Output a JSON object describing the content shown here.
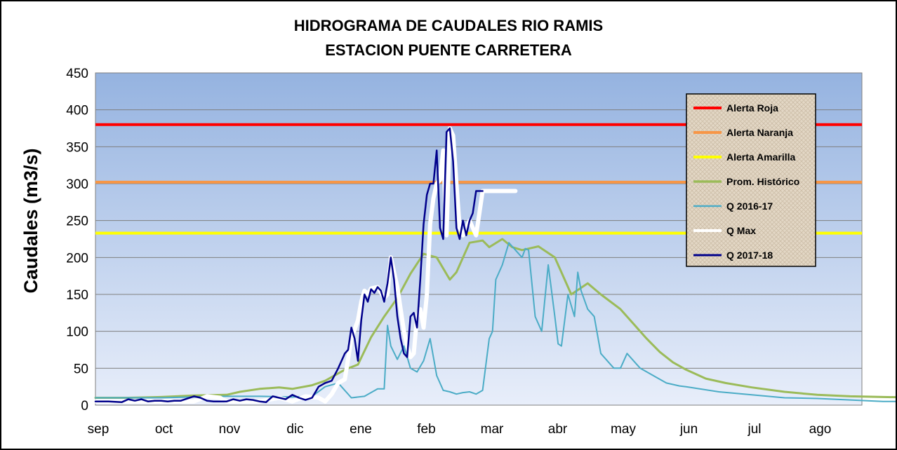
{
  "chart_data": {
    "type": "line",
    "title": [
      "HIDROGRAMA DE CAUDALES RIO RAMIS",
      "ESTACION PUENTE CARRETERA"
    ],
    "ylabel": "Caudales (m3/s)",
    "xlabel": "",
    "ylim": [
      0,
      450
    ],
    "yticks": [
      0,
      50,
      100,
      150,
      200,
      250,
      300,
      350,
      400,
      450
    ],
    "xlim": [
      0,
      12.9
    ],
    "x_unit": "months from start of September",
    "months": [
      "sep",
      "oct",
      "nov",
      "dic",
      "ene",
      "feb",
      "mar",
      "abr",
      "may",
      "jun",
      "jul",
      "ago"
    ],
    "grid": true,
    "legend_position": "right",
    "thresholds": [
      {
        "name": "Alerta Roja",
        "value": 380,
        "color": "#ff0000"
      },
      {
        "name": "Alerta Naranja",
        "value": 302,
        "color": "#f79646"
      },
      {
        "name": "Alerta Amarilla",
        "value": 233,
        "color": "#ffff00"
      }
    ],
    "series": [
      {
        "name": "Prom. Histórico",
        "color": "#9bbb59",
        "width": 3,
        "x": [
          0,
          0.5,
          1,
          1.5,
          2,
          2.2,
          2.5,
          2.8,
          3,
          3.3,
          3.5,
          3.8,
          4,
          4.2,
          4.4,
          4.6,
          4.8,
          5,
          5.2,
          5.4,
          5.5,
          5.7,
          5.9,
          6,
          6.2,
          6.35,
          6.5,
          6.75,
          7,
          7.25,
          7.5,
          7.7,
          8,
          8.2,
          8.4,
          8.6,
          8.8,
          9,
          9.3,
          9.6,
          10,
          10.5,
          11,
          11.5,
          12,
          12.9
        ],
        "y": [
          10,
          10,
          11,
          13,
          14,
          18,
          22,
          24,
          22,
          27,
          33,
          48,
          55,
          92,
          120,
          145,
          178,
          205,
          200,
          170,
          180,
          220,
          223,
          214,
          225,
          214,
          210,
          215,
          200,
          150,
          165,
          150,
          130,
          110,
          90,
          72,
          58,
          48,
          36,
          30,
          24,
          18,
          14,
          12,
          11,
          10
        ]
      },
      {
        "name": "Q 2016-17",
        "color": "#4bacc6",
        "width": 2,
        "x": [
          0,
          0.5,
          1,
          1.5,
          2,
          2.5,
          3,
          3.3,
          3.5,
          3.7,
          3.9,
          4.1,
          4.3,
          4.4,
          4.45,
          4.5,
          4.6,
          4.7,
          4.8,
          4.9,
          5,
          5.1,
          5.2,
          5.3,
          5.4,
          5.5,
          5.6,
          5.7,
          5.8,
          5.9,
          6.0,
          6.05,
          6.1,
          6.2,
          6.3,
          6.5,
          6.55,
          6.6,
          6.7,
          6.8,
          6.9,
          7.0,
          7.05,
          7.1,
          7.2,
          7.3,
          7.35,
          7.4,
          7.5,
          7.6,
          7.7,
          7.8,
          7.9,
          8.0,
          8.1,
          8.2,
          8.3,
          8.5,
          8.7,
          8.9,
          9,
          9.5,
          10,
          10.5,
          11,
          11.5,
          12,
          12.9
        ],
        "y": [
          10,
          10,
          10,
          11,
          12,
          12,
          11,
          12,
          25,
          30,
          10,
          12,
          22,
          22,
          108,
          80,
          62,
          80,
          50,
          45,
          60,
          90,
          40,
          20,
          18,
          15,
          17,
          18,
          15,
          20,
          90,
          100,
          170,
          190,
          220,
          200,
          212,
          210,
          120,
          100,
          190,
          120,
          83,
          80,
          150,
          120,
          180,
          155,
          130,
          120,
          70,
          60,
          50,
          50,
          70,
          60,
          50,
          40,
          30,
          26,
          25,
          18,
          14,
          10,
          9,
          7,
          5,
          5
        ]
      },
      {
        "name": "Q Max",
        "color": "#ffffff",
        "width": 6,
        "x": [
          0,
          0.5,
          1,
          1.5,
          1.7,
          1.9,
          2,
          2.5,
          2.8,
          3,
          3.2,
          3.4,
          3.5,
          3.6,
          3.7,
          3.8,
          3.9,
          4,
          4.05,
          4.1,
          4.15,
          4.2,
          4.3,
          4.4,
          4.45,
          4.5,
          4.6,
          4.7,
          4.75,
          4.8,
          4.85,
          4.9,
          4.95,
          5,
          5.05,
          5.1,
          5.15,
          5.2,
          5.25,
          5.3,
          5.35,
          5.4,
          5.45,
          5.5,
          5.55,
          5.6,
          5.7,
          5.8,
          5.85,
          5.9,
          5.95,
          6.0,
          6.05,
          6.1,
          6.15,
          6.2,
          6.25,
          6.3,
          6.35,
          6.4
        ],
        "y": [
          5,
          5,
          5,
          5,
          12,
          10,
          5,
          5,
          10,
          5,
          12,
          10,
          5,
          15,
          30,
          35,
          90,
          115,
          140,
          155,
          150,
          158,
          160,
          145,
          150,
          200,
          160,
          100,
          80,
          65,
          70,
          120,
          130,
          105,
          150,
          245,
          280,
          300,
          305,
          345,
          230,
          375,
          365,
          300,
          240,
          230,
          250,
          230,
          260,
          290,
          290,
          290,
          290,
          290,
          290,
          290,
          290,
          290,
          290,
          290
        ]
      },
      {
        "name": "Q 2017-18",
        "color": "#00008b",
        "width": 2.5,
        "x": [
          0,
          0.2,
          0.4,
          0.5,
          0.6,
          0.7,
          0.8,
          0.9,
          1,
          1.1,
          1.2,
          1.3,
          1.5,
          1.6,
          1.7,
          1.8,
          1.9,
          2,
          2.1,
          2.2,
          2.3,
          2.4,
          2.5,
          2.6,
          2.7,
          2.8,
          2.9,
          3,
          3.1,
          3.2,
          3.3,
          3.4,
          3.5,
          3.6,
          3.7,
          3.8,
          3.85,
          3.9,
          3.95,
          4,
          4.05,
          4.1,
          4.15,
          4.2,
          4.25,
          4.3,
          4.35,
          4.4,
          4.45,
          4.5,
          4.55,
          4.6,
          4.65,
          4.7,
          4.75,
          4.8,
          4.85,
          4.9,
          4.95,
          5,
          5.05,
          5.1,
          5.15,
          5.2,
          5.25,
          5.3,
          5.35,
          5.4,
          5.45,
          5.5,
          5.55,
          5.6,
          5.65,
          5.7,
          5.75,
          5.8,
          5.85,
          5.9
        ],
        "y": [
          5,
          5,
          4,
          8,
          6,
          8,
          5,
          6,
          6,
          5,
          6,
          6,
          12,
          10,
          6,
          5,
          5,
          5,
          8,
          6,
          8,
          7,
          5,
          4,
          12,
          10,
          8,
          14,
          10,
          7,
          10,
          25,
          30,
          33,
          50,
          70,
          75,
          105,
          90,
          60,
          115,
          150,
          140,
          157,
          152,
          160,
          155,
          140,
          165,
          200,
          170,
          120,
          90,
          70,
          65,
          120,
          125,
          105,
          170,
          245,
          285,
          300,
          300,
          345,
          240,
          225,
          370,
          375,
          330,
          240,
          225,
          250,
          230,
          250,
          260,
          290,
          290,
          290
        ]
      }
    ]
  }
}
